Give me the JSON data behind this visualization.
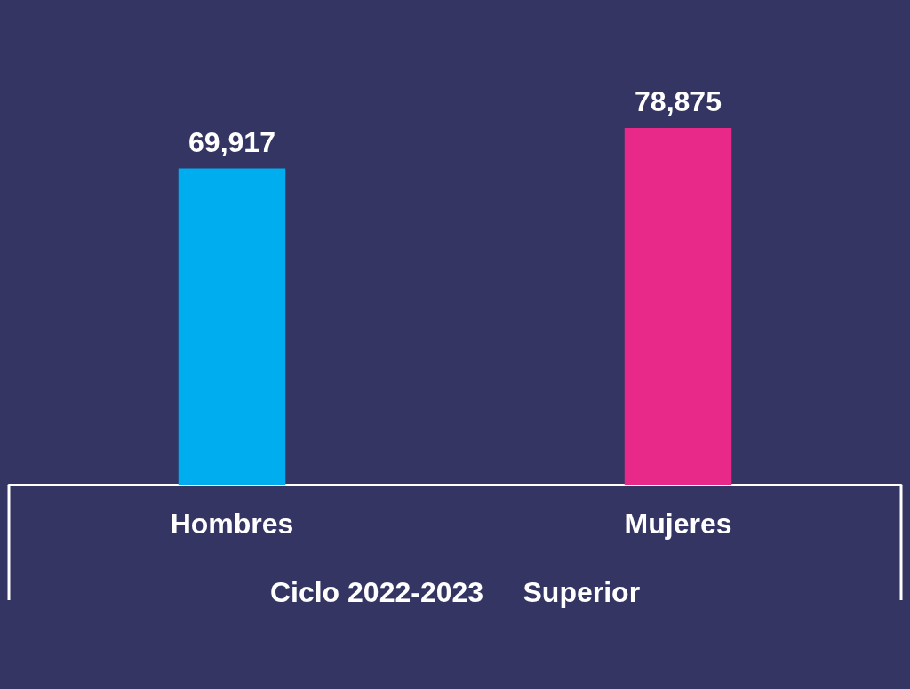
{
  "chart_data": {
    "type": "bar",
    "categories": [
      "Hombres",
      "Mujeres"
    ],
    "values": [
      69917,
      78875
    ],
    "colors": [
      "#00aeef",
      "#e8298a"
    ],
    "value_labels": [
      "69,917",
      "78,875"
    ],
    "xlabel": "Ciclo 2022-2023     Superior",
    "grid": false
  }
}
